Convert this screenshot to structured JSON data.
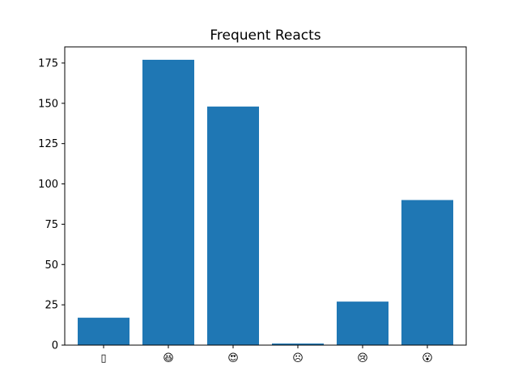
{
  "chart_data": {
    "type": "bar",
    "title": "Frequent Reacts",
    "xlabel": "",
    "ylabel": "",
    "categories": [
      "▯",
      "😆",
      "😍",
      "☹",
      "😢",
      "😮"
    ],
    "values": [
      17,
      177,
      148,
      1,
      27,
      90
    ],
    "ylim": [
      0,
      185
    ],
    "yticks": [
      0,
      25,
      50,
      75,
      100,
      125,
      150,
      175
    ],
    "bar_color": "#1f77b4",
    "grid": false,
    "legend": "none"
  }
}
